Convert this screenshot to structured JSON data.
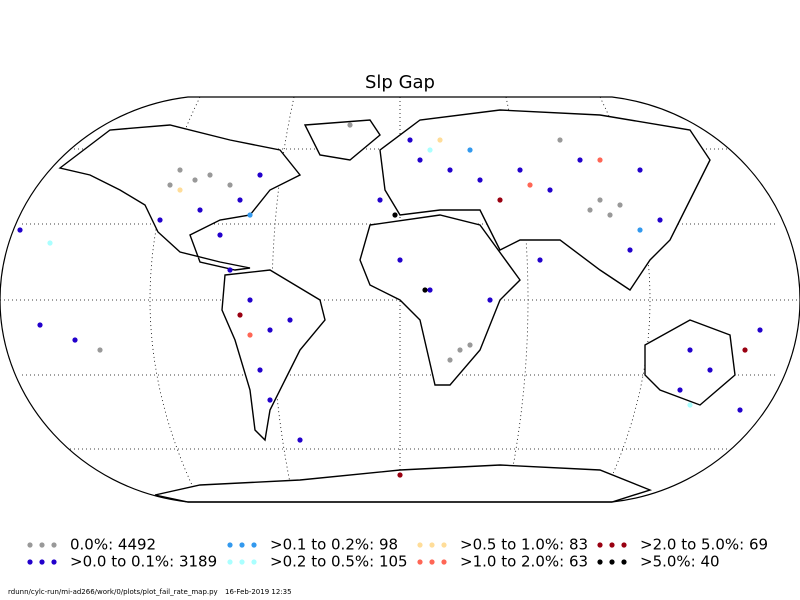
{
  "title": "Slp Gap",
  "legend": [
    {
      "label": "0.0%: 4492",
      "color": "#999999"
    },
    {
      "label": ">0.0 to 0.1%: 3189",
      "color": "#2200cc"
    },
    {
      "label": ">0.1 to 0.2%: 98",
      "color": "#3399ee"
    },
    {
      "label": ">0.2 to 0.5%: 105",
      "color": "#aaffff"
    },
    {
      "label": ">0.5 to 1.0%: 83",
      "color": "#ffdd99"
    },
    {
      "label": ">1.0 to 2.0%: 63",
      "color": "#ff6655"
    },
    {
      "label": ">2.0 to 5.0%: 69",
      "color": "#990011"
    },
    {
      "label": ">5.0%: 40",
      "color": "#000000"
    }
  ],
  "footer": {
    "path": "rdunn/cylc-run/mi-ad266/work/0/plots/plot_fail_rate_map.py",
    "timestamp": "16-Feb-2019 12:35"
  }
}
